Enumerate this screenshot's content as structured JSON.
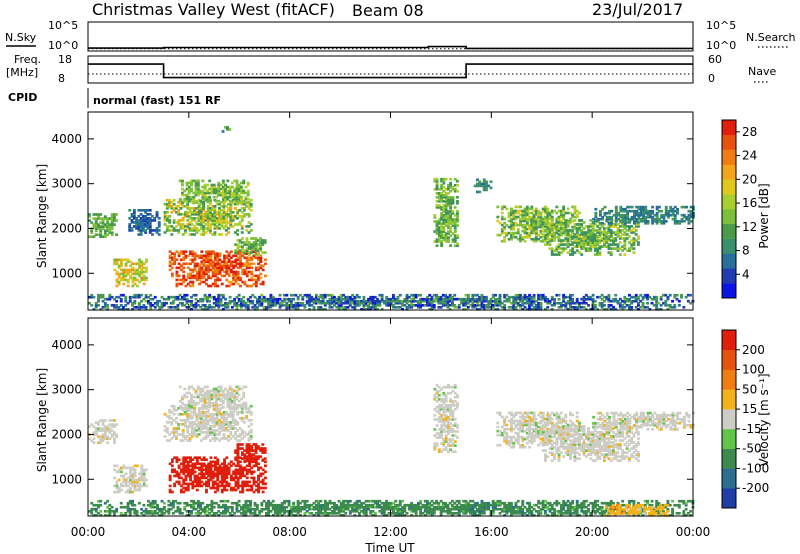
{
  "header": {
    "station": "Christmas Valley West (fitACF)",
    "beam": "Beam 08",
    "date": "23/Jul/2017"
  },
  "strips": {
    "nsky": {
      "label": "N.Sky",
      "tick_top": "10^5",
      "tick_bottom": "10^0"
    },
    "nsearch": {
      "label": "N.Search",
      "tick_top": "10^5",
      "tick_bottom": "10^0"
    },
    "freq": {
      "label_line1": "Freq.",
      "label_line2": "[MHz]",
      "tick_top": "18",
      "tick_bottom": "8"
    },
    "nave": {
      "label": "Nave",
      "tick_top": "60",
      "tick_bottom": "0"
    },
    "cpid": {
      "label": "CPID",
      "mode": "normal (fast) 151 RF"
    }
  },
  "chart_data": [
    {
      "type": "line",
      "panel": "noise",
      "series": [
        {
          "name": "N.Sky",
          "line": "solid",
          "x": [
            "00:00",
            "03:00",
            "03:00",
            "13:30",
            "13:30",
            "15:00",
            "15:00",
            "24:00"
          ],
          "y_log10": [
            0.5,
            0.5,
            0.6,
            0.6,
            0.75,
            0.75,
            0.45,
            0.45
          ]
        },
        {
          "name": "N.Search",
          "line": "dotted",
          "x": [
            "00:00",
            "24:00"
          ],
          "y_log10": [
            0.4,
            0.4
          ]
        }
      ]
    },
    {
      "type": "line",
      "panel": "frequency / nave",
      "series": [
        {
          "name": "Freq.",
          "line": "solid",
          "unit": "MHz",
          "x": [
            "00:00",
            "03:00",
            "03:00",
            "15:00",
            "15:00",
            "24:00"
          ],
          "y": [
            15,
            15,
            10,
            10,
            15,
            15
          ]
        },
        {
          "name": "Nave",
          "line": "dotted",
          "x": [
            "00:00",
            "24:00"
          ],
          "y": [
            20,
            20
          ]
        }
      ]
    },
    {
      "type": "heatmap",
      "panel": "power",
      "ylabel": "Slant Range [km]",
      "xlabel": "",
      "xlim_hours": [
        0,
        24
      ],
      "ylim_km": [
        180,
        4600
      ],
      "xticks": [
        "00:00",
        "04:00",
        "08:00",
        "12:00",
        "16:00",
        "20:00",
        "00:00"
      ],
      "yticks": [
        1000,
        2000,
        3000,
        4000
      ],
      "colorbar": {
        "label": "Power [dB]",
        "ticks": [
          4,
          8,
          12,
          16,
          20,
          24,
          28
        ],
        "range": [
          0,
          30
        ],
        "colors": [
          "#0a14e6",
          "#1f3bb0",
          "#276f9a",
          "#3a8f6c",
          "#4a9a4a",
          "#7cbf3c",
          "#a8cf2e",
          "#e0c81c",
          "#f2a51a",
          "#ef7d12",
          "#e8520c",
          "#e01e0b"
        ]
      },
      "regions": [
        {
          "t0": 0.0,
          "t1": 1.1,
          "r0": 1800,
          "r1": 2300,
          "value": 12,
          "spread": 3
        },
        {
          "t0": 1.0,
          "t1": 2.3,
          "r0": 700,
          "r1": 1300,
          "value": 18,
          "spread": 5
        },
        {
          "t0": 1.6,
          "t1": 2.8,
          "r0": 1850,
          "r1": 2400,
          "value": 6,
          "spread": 2
        },
        {
          "t0": 3.0,
          "t1": 6.5,
          "r0": 1850,
          "r1": 2650,
          "value": 15,
          "spread": 6
        },
        {
          "t0": 3.6,
          "t1": 6.3,
          "r0": 2550,
          "r1": 3050,
          "value": 14,
          "spread": 4
        },
        {
          "t0": 3.2,
          "t1": 7.0,
          "r0": 700,
          "r1": 1500,
          "value": 26,
          "spread": 4
        },
        {
          "t0": 5.8,
          "t1": 7.0,
          "r0": 1400,
          "r1": 1800,
          "value": 13,
          "spread": 4
        },
        {
          "t0": 5.3,
          "t1": 5.6,
          "r0": 4150,
          "r1": 4280,
          "value": 10,
          "spread": 3
        },
        {
          "t0": 13.7,
          "t1": 14.6,
          "r0": 1600,
          "r1": 3100,
          "value": 13,
          "spread": 4
        },
        {
          "t0": 15.3,
          "t1": 16.0,
          "r0": 2800,
          "r1": 3100,
          "value": 9,
          "spread": 3
        },
        {
          "t0": 16.2,
          "t1": 19.5,
          "r0": 1700,
          "r1": 2500,
          "value": 14,
          "spread": 5
        },
        {
          "t0": 18.0,
          "t1": 21.8,
          "r0": 1400,
          "r1": 2200,
          "value": 13,
          "spread": 5
        },
        {
          "t0": 20.0,
          "t1": 24.0,
          "r0": 2100,
          "r1": 2500,
          "value": 8,
          "spread": 3
        },
        {
          "t0": 0.0,
          "t1": 24.0,
          "r0": 180,
          "r1": 500,
          "value": 7,
          "spread": 6
        }
      ]
    },
    {
      "type": "heatmap",
      "panel": "velocity",
      "ylabel": "Slant Range [km]",
      "xlabel": "Time UT",
      "xlim_hours": [
        0,
        24
      ],
      "ylim_km": [
        180,
        4600
      ],
      "xticks": [
        "00:00",
        "04:00",
        "08:00",
        "12:00",
        "16:00",
        "20:00",
        "00:00"
      ],
      "yticks": [
        1000,
        2000,
        3000,
        4000
      ],
      "colorbar": {
        "label": "Velocity [m s⁻¹]",
        "ticks": [
          "200",
          "100",
          "50",
          "15",
          "-15",
          "-50",
          "-100",
          "-200"
        ],
        "colors": [
          "#1f3fa6",
          "#2b6e8f",
          "#3d8a4e",
          "#62c44a",
          "#cdcdc5",
          "#f2b21c",
          "#ef7e12",
          "#e8520c",
          "#e01e0b"
        ]
      },
      "regions": [
        {
          "t0": 0.0,
          "t1": 1.1,
          "r0": 1800,
          "r1": 2300,
          "value": 0,
          "spread": 1
        },
        {
          "t0": 1.0,
          "t1": 2.3,
          "r0": 700,
          "r1": 1300,
          "value": 0,
          "spread": 1
        },
        {
          "t0": 3.0,
          "t1": 6.5,
          "r0": 1850,
          "r1": 2650,
          "value": 0,
          "spread": 1
        },
        {
          "t0": 3.6,
          "t1": 6.3,
          "r0": 2550,
          "r1": 3050,
          "value": 0,
          "spread": 1
        },
        {
          "t0": 3.2,
          "t1": 7.0,
          "r0": 700,
          "r1": 1500,
          "value": 6,
          "spread": 1
        },
        {
          "t0": 5.8,
          "t1": 7.0,
          "r0": 1400,
          "r1": 1800,
          "value": 6,
          "spread": 1
        },
        {
          "t0": 13.7,
          "t1": 14.6,
          "r0": 1600,
          "r1": 3100,
          "value": 0,
          "spread": 1
        },
        {
          "t0": 16.2,
          "t1": 19.5,
          "r0": 1700,
          "r1": 2500,
          "value": 0,
          "spread": 1
        },
        {
          "t0": 18.0,
          "t1": 21.8,
          "r0": 1400,
          "r1": 2200,
          "value": 0,
          "spread": 1
        },
        {
          "t0": 20.0,
          "t1": 24.0,
          "r0": 2100,
          "r1": 2500,
          "value": 0,
          "spread": 1
        },
        {
          "t0": 0.0,
          "t1": 24.0,
          "r0": 180,
          "r1": 500,
          "value": -2,
          "spread": 1
        },
        {
          "t0": 20.5,
          "t1": 23.0,
          "r0": 180,
          "r1": 420,
          "value": 1,
          "spread": 1
        }
      ]
    }
  ]
}
